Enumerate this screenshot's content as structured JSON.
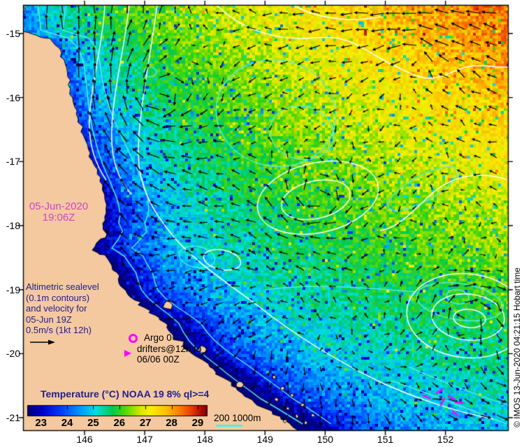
{
  "colors": {
    "background": "#FFFFFF",
    "land": "#F5C9A0",
    "frame": "#000000",
    "arrow": "#000000",
    "contour_sealevel": "#FFFFFF",
    "contour_bathymetry": "#55EEDC",
    "marker_magenta": "#FF00FF",
    "date_text": "#CC44CC",
    "legend_text": "#20208C",
    "colorbar_min_color": "#000080",
    "colorbar_max_color": "#800000"
  },
  "map": {
    "date_line1": "05-Jun-2020",
    "date_line2": "19:06Z",
    "altimetric_lines": [
      "Altimetric sealevel",
      "(0.1m contours)",
      "and velocity for",
      "05-Jun 19Z",
      "0.5m/s (1kt 12h)"
    ],
    "argo_label": "Argo 0",
    "drifters_line1": "drifters@12h to",
    "drifters_line2": "06/06 00Z",
    "colorbar_title": "Temperature (°C) NOAA 19 8% ql>=4",
    "colorbar_tick_labels": [
      "23",
      "24",
      "25",
      "26",
      "27",
      "28",
      "29"
    ],
    "bathy_label": "200 1000m",
    "attribution": "© IMOS 13-Jun-2020 04:21:15 Hobart time",
    "lat_tick_labels": [
      "-15",
      "-16",
      "-17",
      "-18",
      "-19",
      "-20",
      "-21"
    ],
    "lon_tick_labels": [
      "146",
      "147",
      "148",
      "149",
      "150",
      "151",
      "152"
    ]
  },
  "chart_data": {
    "type": "heatmap",
    "title": "Temperature (°C) NOAA 19 8% ql>=4",
    "x_tick_values": [
      146,
      147,
      148,
      149,
      150,
      151,
      152
    ],
    "y_tick_values": [
      -15,
      -16,
      -17,
      -18,
      -19,
      -20,
      -21
    ],
    "colorbar_tick_values": [
      23,
      24,
      25,
      26,
      27,
      28,
      29
    ],
    "legend_overlays": [
      "Altimetric sealevel (0.1m contours) and velocity for 05-Jun 19Z 0.5m/s (1kt 12h)",
      "Argo 0",
      "drifters@12h to 06/06 00Z",
      "200 1000m"
    ]
  }
}
